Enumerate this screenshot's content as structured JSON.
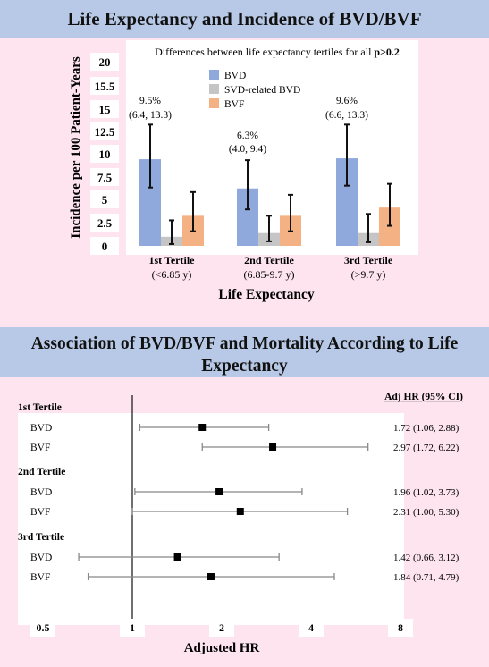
{
  "top": {
    "title": "Life Expectancy and Incidence of BVD/BVF",
    "note_prefix": "Differences between life expectancy tertiles for all ",
    "note_bold": "p>0.2",
    "chart_data": {
      "type": "bar",
      "ylabel": "Incidence per 100 Patient-Years",
      "xlabel": "Life Expectancy",
      "ylim": [
        0,
        20
      ],
      "yticks": [
        "20",
        "15.5",
        "15",
        "12.5",
        "10",
        "7.5",
        "5",
        "2.5",
        "0"
      ],
      "categories": [
        "1st Tertile",
        "2nd Tertile",
        "3rd Tertile"
      ],
      "category_sublabels": [
        "(<6.85 y)",
        "(6.85-9.7 y)",
        "(>9.7 y)"
      ],
      "legend_position": "top-center",
      "series": [
        {
          "name": "BVD",
          "color": "#8fa9dc",
          "values": [
            9.5,
            6.3,
            9.6
          ],
          "err_low": [
            6.4,
            4.0,
            6.6
          ],
          "err_high": [
            13.3,
            9.4,
            13.3
          ]
        },
        {
          "name": "SVD-related BVD",
          "color": "#c5c5c5",
          "values": [
            1.0,
            1.4,
            1.4
          ],
          "err_low": [
            0.2,
            0.5,
            0.4
          ],
          "err_high": [
            2.8,
            3.3,
            3.5
          ]
        },
        {
          "name": "BVF",
          "color": "#f4b183",
          "values": [
            3.3,
            3.3,
            4.2
          ],
          "err_low": [
            1.6,
            1.6,
            2.2
          ],
          "err_high": [
            5.9,
            5.6,
            6.8
          ]
        }
      ],
      "annotations": [
        {
          "pct": "9.5%",
          "ci": "(6.4, 13.3)"
        },
        {
          "pct": "6.3%",
          "ci": "(4.0, 9.4)"
        },
        {
          "pct": "9.6%",
          "ci": "(6.6, 13.3)"
        }
      ]
    }
  },
  "bottom": {
    "title": "Association of BVD/BVF and Mortality According to Life Expectancy",
    "ci_header": "Adj HR (95% CI)",
    "chart_data": {
      "type": "scatter",
      "xlabel": "Adjusted HR",
      "x_scale": "log",
      "xlim": [
        0.5,
        8
      ],
      "xticks": [
        "0.5",
        "1",
        "2",
        "4",
        "8"
      ],
      "reference_line": 1,
      "groups": [
        {
          "label": "1st Tertile",
          "rows": [
            {
              "label": "BVD",
              "hr": 1.72,
              "low": 1.06,
              "high": 2.88,
              "text": "1.72 (1.06, 2.88)"
            },
            {
              "label": "BVF",
              "hr": 2.97,
              "low": 1.72,
              "high": 6.22,
              "text": "2.97 (1.72, 6.22)"
            }
          ]
        },
        {
          "label": "2nd Tertile",
          "rows": [
            {
              "label": "BVD",
              "hr": 1.96,
              "low": 1.02,
              "high": 3.73,
              "text": "1.96 (1.02, 3.73)"
            },
            {
              "label": "BVF",
              "hr": 2.31,
              "low": 1.0,
              "high": 5.3,
              "text": "2.31 (1.00, 5.30)"
            }
          ]
        },
        {
          "label": "3rd Tertile",
          "rows": [
            {
              "label": "BVD",
              "hr": 1.42,
              "low": 0.66,
              "high": 3.12,
              "text": "1.42 (0.66, 3.12)"
            },
            {
              "label": "BVF",
              "hr": 1.84,
              "low": 0.71,
              "high": 4.79,
              "text": "1.84 (0.71, 4.79)"
            }
          ]
        }
      ]
    }
  }
}
